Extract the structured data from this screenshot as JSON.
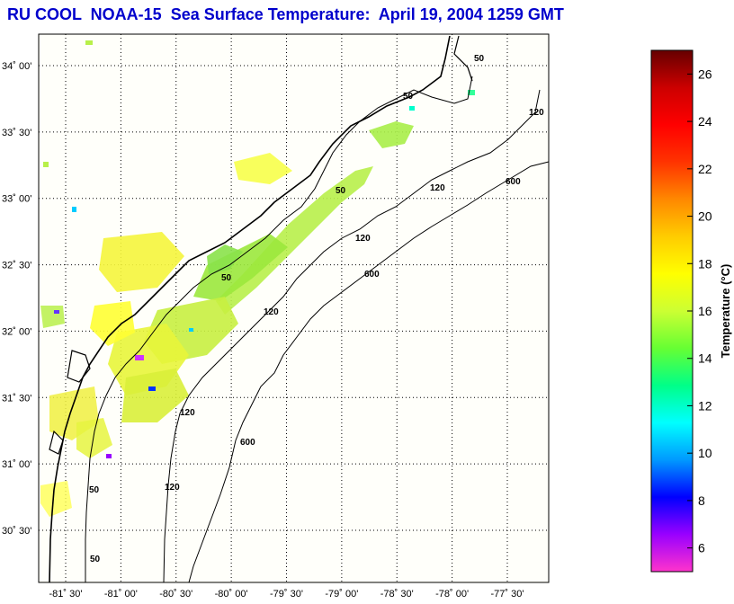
{
  "title": "RU COOL  NOAA-15  Sea Surface Temperature:  April 19, 2004 1259 GMT",
  "map": {
    "lat_ticks": [
      {
        "value": 34.0,
        "label": "34˚ 00'"
      },
      {
        "value": 33.5,
        "label": "33˚ 30'"
      },
      {
        "value": 33.0,
        "label": "33˚ 00'"
      },
      {
        "value": 32.5,
        "label": "32˚ 30'"
      },
      {
        "value": 32.0,
        "label": "32˚ 00'"
      },
      {
        "value": 31.5,
        "label": "31˚ 30'"
      },
      {
        "value": 31.0,
        "label": "31˚ 00'"
      },
      {
        "value": 30.5,
        "label": "30˚ 30'"
      }
    ],
    "lon_ticks": [
      {
        "value": -81.5,
        "label": "-81˚ 30'"
      },
      {
        "value": -81.0,
        "label": "-81˚ 00'"
      },
      {
        "value": -80.5,
        "label": "-80˚ 30'"
      },
      {
        "value": -80.0,
        "label": "-80˚ 00'"
      },
      {
        "value": -79.5,
        "label": "-79˚ 30'"
      },
      {
        "value": -79.0,
        "label": "-79˚ 00'"
      },
      {
        "value": -78.5,
        "label": "-78˚ 30'"
      },
      {
        "value": -78.0,
        "label": "-78˚ 00'"
      },
      {
        "value": -77.5,
        "label": "-77˚ 30'"
      }
    ],
    "contour_labels": [
      "50",
      "50",
      "50",
      "50",
      "50",
      "50",
      "120",
      "120",
      "120",
      "120",
      "120",
      "120",
      "600",
      "600",
      "600"
    ]
  },
  "colorbar": {
    "title": "Temperature (°C)",
    "min": 5,
    "max": 27,
    "tick_values": [
      6,
      8,
      10,
      12,
      14,
      16,
      18,
      20,
      22,
      24,
      26
    ],
    "tick_labels": [
      "6",
      "8",
      "10",
      "12",
      "14",
      "16",
      "18",
      "20",
      "22",
      "24",
      "26"
    ],
    "colors": [
      "#ff33cc",
      "#9900ff",
      "#0000ff",
      "#0099ff",
      "#00ffff",
      "#00ff88",
      "#66ff33",
      "#ccff33",
      "#ffff00",
      "#ffcc00",
      "#ff8800",
      "#ff3300",
      "#ff0000",
      "#cc0000",
      "#660000"
    ]
  }
}
